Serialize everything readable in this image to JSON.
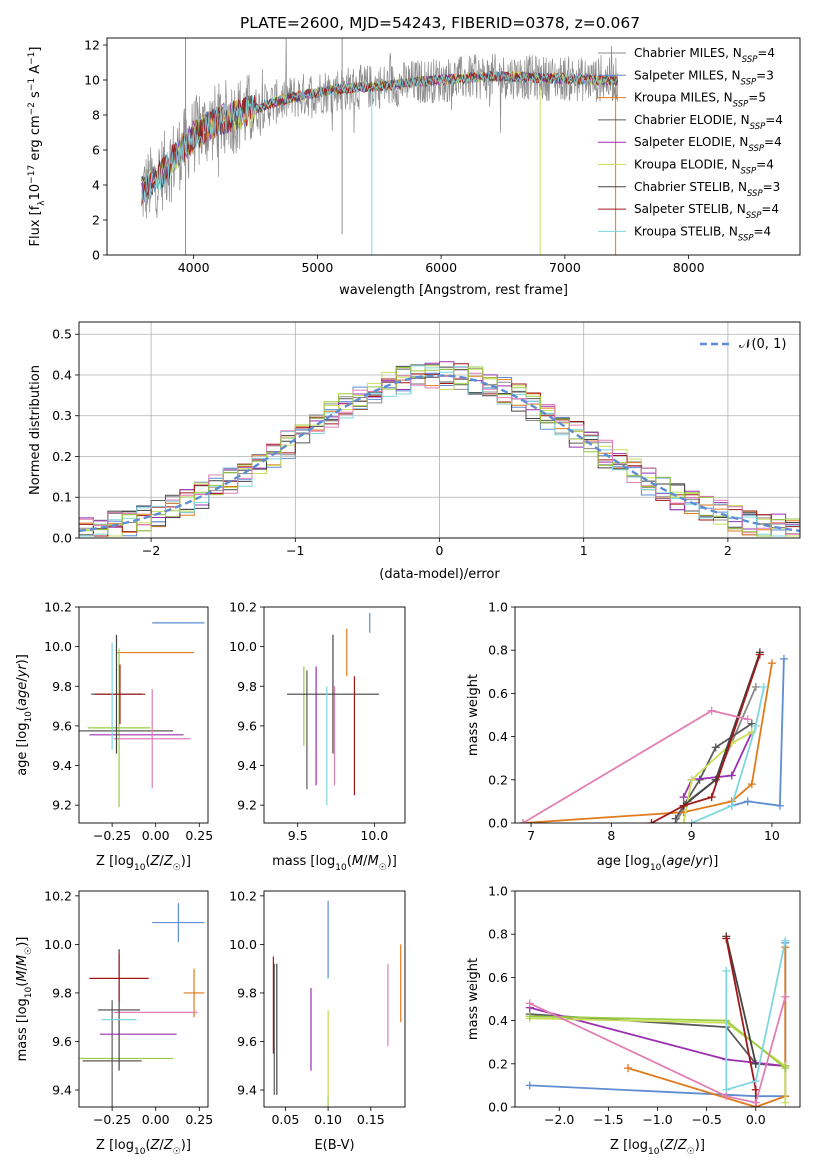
{
  "title": "PLATE=2600, MJD=54243, FIBERID=0378, z=0.067",
  "colors": {
    "Chabrier MILES": "#8c8c8c",
    "Salpeter MILES": "#5f8dd3",
    "Kroupa MILES": "#e07b1c",
    "Chabrier ELODIE": "#5a5a5a",
    "Salpeter ELODIE": "#9b30b0",
    "Kroupa ELODIE": "#c8e05a",
    "Chabrier STELIB": "#444444",
    "Salpeter STELIB": "#a01818",
    "Kroupa STELIB": "#7fd6e0",
    "pink": "#e27fb4",
    "olive": "#9acb40"
  },
  "legend1": [
    {
      "pre": "Chabrier MILES, N",
      "sub": "SSP",
      "post": "=4",
      "color": "#8c8c8c"
    },
    {
      "pre": "Salpeter MILES, N",
      "sub": "SSP",
      "post": "=3",
      "color": "#5f8dd3"
    },
    {
      "pre": "Kroupa MILES, N",
      "sub": "SSP",
      "post": "=5",
      "color": "#e07b1c"
    },
    {
      "pre": "Chabrier ELODIE, N",
      "sub": "SSP",
      "post": "=4",
      "color": "#5a5a5a"
    },
    {
      "pre": "Salpeter ELODIE, N",
      "sub": "SSP",
      "post": "=4",
      "color": "#9b30b0"
    },
    {
      "pre": "Kroupa ELODIE, N",
      "sub": "SSP",
      "post": "=4",
      "color": "#c8e05a"
    },
    {
      "pre": "Chabrier STELIB, N",
      "sub": "SSP",
      "post": "=3",
      "color": "#444444"
    },
    {
      "pre": "Salpeter STELIB, N",
      "sub": "SSP",
      "post": "=4",
      "color": "#a01818"
    },
    {
      "pre": "Kroupa STELIB, N",
      "sub": "SSP",
      "post": "=4",
      "color": "#7fd6e0"
    }
  ],
  "legend2": {
    "label": "𝒩(0,1)",
    "color": "#5f8dd3"
  },
  "chart_data": [
    {
      "id": "spectrum",
      "type": "line",
      "xlabel": "wavelength [Angstrom, rest frame]",
      "ylabel": "Flux [f_λ 10^-17 erg cm^-2 s^-1 A^-1]",
      "xlim": [
        3300,
        8900
      ],
      "ylim": [
        0,
        12.4
      ],
      "xticks": [
        4000,
        5000,
        6000,
        7000,
        8000
      ],
      "yticks": [
        0,
        2,
        4,
        6,
        8,
        10,
        12
      ],
      "grid": false,
      "series_shape": {
        "x": [
          3580,
          3700,
          3800,
          3900,
          4000,
          4100,
          4250,
          4400,
          4600,
          4800,
          5000,
          5200,
          5400,
          5600,
          5800,
          6000,
          6200,
          6400,
          6600,
          6800,
          7000,
          7200,
          7420
        ],
        "y": [
          3.6,
          4.3,
          5.2,
          6.0,
          6.8,
          7.3,
          7.8,
          8.1,
          8.6,
          9.0,
          9.3,
          9.5,
          9.6,
          9.7,
          9.9,
          10.0,
          10.1,
          10.2,
          10.2,
          10.1,
          10.1,
          10.0,
          10.0
        ]
      }
    },
    {
      "id": "residuals",
      "type": "histogram",
      "xlabel": "(data-model)/error",
      "ylabel": "Normed distribution",
      "xlim": [
        -2.5,
        2.5
      ],
      "ylim": [
        0,
        0.53
      ],
      "xticks": [
        -2,
        -1,
        0,
        1,
        2
      ],
      "yticks": [
        0.0,
        0.1,
        0.2,
        0.3,
        0.4,
        0.5
      ],
      "grid": true,
      "bin_width": 0.1,
      "reference": "N(0,1) dashed"
    },
    {
      "id": "age_vs_Z",
      "type": "errorbar",
      "xlabel": "Z [log10(Z/Z☉)]",
      "ylabel": "age  [log10(age/yr)]",
      "xlim": [
        -0.44,
        0.3
      ],
      "ylim": [
        9.11,
        10.2
      ],
      "xticks": [
        -0.25,
        0.0,
        0.25
      ],
      "yticks": [
        9.2,
        9.4,
        9.6,
        9.8,
        10.0,
        10.2
      ],
      "points": [
        {
          "x": 0.13,
          "xerr": 0.15,
          "y": 10.12,
          "yerr": 0.0,
          "color": "#5f8dd3"
        },
        {
          "x": 0.0,
          "xerr": 0.22,
          "y": 9.97,
          "yerr": 0.0,
          "color": "#e07b1c"
        },
        {
          "x": -0.21,
          "xerr": 0.18,
          "y": 9.59,
          "yerr": 0.4,
          "color": "#9acb40"
        },
        {
          "x": -0.17,
          "xerr": 0.27,
          "y": 9.575,
          "yerr": 0.0,
          "color": "#5a5a5a"
        },
        {
          "x": -0.11,
          "xerr": 0.27,
          "y": 9.555,
          "yerr": 0.0,
          "color": "#9b30b0"
        },
        {
          "x": -0.02,
          "xerr": 0.22,
          "y": 9.535,
          "yerr": 0.25,
          "color": "#e27fb4"
        },
        {
          "x": -0.225,
          "xerr": 0.145,
          "y": 9.76,
          "yerr": 0.3,
          "color": "#444444"
        },
        {
          "x": -0.205,
          "xerr": 0.145,
          "y": 9.76,
          "yerr": 0.15,
          "color": "#a01818"
        },
        {
          "x": -0.25,
          "xerr": 0.0,
          "y": 9.75,
          "yerr": 0.27,
          "color": "#7fd6e0"
        }
      ]
    },
    {
      "id": "age_vs_mass",
      "type": "errorbar",
      "xlabel": "mass [log10(M/M☉)]",
      "ylabel": "",
      "xlim": [
        9.28,
        10.2
      ],
      "ylim": [
        9.11,
        10.2
      ],
      "xticks": [
        9.5,
        10.0
      ],
      "yticks": [
        9.2,
        9.4,
        9.6,
        9.8,
        10.0,
        10.2
      ],
      "points": [
        {
          "x": 9.97,
          "xerr": 0.0,
          "y": 10.12,
          "yerr": 0.05,
          "color": "#5f8dd3"
        },
        {
          "x": 9.82,
          "xerr": 0.0,
          "y": 9.97,
          "yerr": 0.12,
          "color": "#e07b1c"
        },
        {
          "x": 9.54,
          "xerr": 0.0,
          "y": 9.7,
          "yerr": 0.2,
          "color": "#9acb40"
        },
        {
          "x": 9.56,
          "xerr": 0.0,
          "y": 9.58,
          "yerr": 0.3,
          "color": "#5a5a5a"
        },
        {
          "x": 9.62,
          "xerr": 0.0,
          "y": 9.6,
          "yerr": 0.3,
          "color": "#9b30b0"
        },
        {
          "x": 9.74,
          "xerr": 0.0,
          "y": 9.55,
          "yerr": 0.25,
          "color": "#e27fb4"
        },
        {
          "x": 9.73,
          "xerr": 0.3,
          "y": 9.76,
          "yerr": 0.3,
          "color": "#444444"
        },
        {
          "x": 9.87,
          "xerr": 0.0,
          "y": 9.55,
          "yerr": 0.3,
          "color": "#a01818"
        },
        {
          "x": 9.69,
          "xerr": 0.0,
          "y": 9.5,
          "yerr": 0.3,
          "color": "#7fd6e0"
        }
      ]
    },
    {
      "id": "weight_vs_age",
      "type": "line",
      "xlabel": "age  [log10(age/yr)]",
      "ylabel": "mass weight",
      "xlim": [
        6.8,
        10.35
      ],
      "ylim": [
        0,
        1
      ],
      "xticks": [
        7,
        8,
        9,
        10
      ],
      "yticks": [
        0.0,
        0.2,
        0.4,
        0.6,
        0.8,
        1.0
      ],
      "series": [
        {
          "name": "Chabrier MILES",
          "color": "#8c8c8c",
          "x": [
            8.8,
            8.95,
            9.3,
            9.8
          ],
          "y": [
            0.0,
            0.1,
            0.2,
            0.63
          ]
        },
        {
          "name": "Salpeter MILES",
          "color": "#5f8dd3",
          "x": [
            9.5,
            9.7,
            10.1,
            10.15
          ],
          "y": [
            0.08,
            0.1,
            0.08,
            0.76
          ]
        },
        {
          "name": "Kroupa MILES",
          "color": "#e07b1c",
          "x": [
            6.9,
            8.9,
            9.5,
            9.75,
            10.0
          ],
          "y": [
            0.0,
            0.05,
            0.1,
            0.18,
            0.74
          ]
        },
        {
          "name": "Chabrier ELODIE",
          "color": "#5a5a5a",
          "x": [
            8.8,
            9.1,
            9.3,
            9.75
          ],
          "y": [
            0.02,
            0.2,
            0.35,
            0.46
          ]
        },
        {
          "name": "Salpeter ELODIE",
          "color": "#9b30b0",
          "x": [
            8.9,
            9.0,
            9.5,
            9.75
          ],
          "y": [
            0.12,
            0.2,
            0.22,
            0.42
          ]
        },
        {
          "name": "Kroupa ELODIE",
          "color": "#c8e05a",
          "x": [
            8.9,
            9.0,
            9.5,
            9.75
          ],
          "y": [
            0.0,
            0.2,
            0.37,
            0.42
          ]
        },
        {
          "name": "Chabrier STELIB",
          "color": "#444444",
          "x": [
            8.9,
            9.3,
            9.85
          ],
          "y": [
            0.08,
            0.2,
            0.79
          ]
        },
        {
          "name": "Salpeter STELIB",
          "color": "#a01818",
          "x": [
            8.5,
            8.9,
            9.25,
            9.85
          ],
          "y": [
            0.0,
            0.08,
            0.12,
            0.78
          ]
        },
        {
          "name": "Kroupa STELIB",
          "color": "#7fd6e0",
          "x": [
            9.0,
            9.5,
            9.8,
            9.9
          ],
          "y": [
            0.0,
            0.08,
            0.45,
            0.63
          ]
        },
        {
          "name": "pink",
          "color": "#e27fb4",
          "x": [
            6.9,
            9.25,
            9.7
          ],
          "y": [
            0.0,
            0.52,
            0.48
          ]
        }
      ]
    },
    {
      "id": "mass_vs_Z",
      "type": "errorbar",
      "xlabel": "Z [log10(Z/Z☉)]",
      "ylabel": "mass [log10(M/M☉)]",
      "xlim": [
        -0.44,
        0.3
      ],
      "ylim": [
        9.33,
        10.22
      ],
      "xticks": [
        -0.25,
        0.0,
        0.25
      ],
      "yticks": [
        9.4,
        9.6,
        9.8,
        10.0,
        10.2
      ],
      "points": [
        {
          "x": 0.13,
          "xerr": 0.15,
          "y": 10.09,
          "yerr": 0.08,
          "color": "#5f8dd3"
        },
        {
          "x": 0.22,
          "xerr": 0.06,
          "y": 9.8,
          "yerr": 0.1,
          "color": "#e07b1c"
        },
        {
          "x": -0.17,
          "xerr": 0.27,
          "y": 9.53,
          "yerr": 0.0,
          "color": "#9acb40"
        },
        {
          "x": -0.25,
          "xerr": 0.17,
          "y": 9.52,
          "yerr": 0.25,
          "color": "#5a5a5a"
        },
        {
          "x": -0.1,
          "xerr": 0.22,
          "y": 9.63,
          "yerr": 0.0,
          "color": "#9b30b0"
        },
        {
          "x": 0.0,
          "xerr": 0.24,
          "y": 9.72,
          "yerr": 0.0,
          "color": "#e27fb4"
        },
        {
          "x": -0.21,
          "xerr": 0.12,
          "y": 9.73,
          "yerr": 0.25,
          "color": "#444444"
        },
        {
          "x": -0.21,
          "xerr": 0.17,
          "y": 9.86,
          "yerr": 0.1,
          "color": "#a01818"
        },
        {
          "x": -0.21,
          "xerr": 0.1,
          "y": 9.69,
          "yerr": 0.0,
          "color": "#7fd6e0"
        }
      ]
    },
    {
      "id": "mass_vs_ebv",
      "type": "errorbar",
      "xlabel": "E(B-V)",
      "ylabel": "",
      "xlim": [
        0.025,
        0.19
      ],
      "ylim": [
        9.33,
        10.22
      ],
      "xticks": [
        0.05,
        0.1,
        0.15
      ],
      "yticks": [
        9.4,
        9.6,
        9.8,
        10.0,
        10.2
      ],
      "points": [
        {
          "x": 0.1,
          "xerr": 0.0,
          "y": 10.02,
          "yerr": 0.16,
          "color": "#5f8dd3"
        },
        {
          "x": 0.185,
          "xerr": 0.0,
          "y": 9.84,
          "yerr": 0.16,
          "color": "#e07b1c"
        },
        {
          "x": 0.1,
          "xerr": 0.0,
          "y": 9.52,
          "yerr": 0.2,
          "color": "#9acb40"
        },
        {
          "x": 0.037,
          "xerr": 0.0,
          "y": 9.65,
          "yerr": 0.27,
          "color": "#5a5a5a"
        },
        {
          "x": 0.08,
          "xerr": 0.0,
          "y": 9.65,
          "yerr": 0.17,
          "color": "#9b30b0"
        },
        {
          "x": 0.17,
          "xerr": 0.0,
          "y": 9.75,
          "yerr": 0.17,
          "color": "#e27fb4"
        },
        {
          "x": 0.04,
          "xerr": 0.0,
          "y": 9.65,
          "yerr": 0.27,
          "color": "#444444"
        },
        {
          "x": 0.036,
          "xerr": 0.0,
          "y": 9.75,
          "yerr": 0.2,
          "color": "#a01818"
        },
        {
          "x": 0.1,
          "xerr": 0.0,
          "y": 9.55,
          "yerr": 0.18,
          "color": "#c8e05a"
        }
      ]
    },
    {
      "id": "weight_vs_Z",
      "type": "line",
      "xlabel": "Z [log10(Z/Z☉)]",
      "ylabel": "mass weight",
      "xlim": [
        -2.45,
        0.45
      ],
      "ylim": [
        0,
        1
      ],
      "xticks": [
        -2.0,
        -1.5,
        -1.0,
        -0.5,
        0.0
      ],
      "yticks": [
        0.0,
        0.2,
        0.4,
        0.6,
        0.8,
        1.0
      ],
      "series": [
        {
          "name": "Salpeter MILES",
          "color": "#5f8dd3",
          "x": [
            -2.3,
            0.0,
            0.3,
            0.3
          ],
          "y": [
            0.1,
            0.05,
            0.05,
            0.76
          ]
        },
        {
          "name": "Kroupa MILES",
          "color": "#e07b1c",
          "x": [
            -1.3,
            0.0,
            0.3,
            0.3
          ],
          "y": [
            0.18,
            0.0,
            0.05,
            0.74
          ]
        },
        {
          "name": "Chabrier ELODIE",
          "color": "#5a5a5a",
          "x": [
            -2.3,
            -0.3,
            0.0,
            0.3
          ],
          "y": [
            0.43,
            0.37,
            0.2,
            0.19
          ]
        },
        {
          "name": "Salpeter ELODIE",
          "color": "#9b30b0",
          "x": [
            -2.3,
            -0.3,
            0.3
          ],
          "y": [
            0.46,
            0.22,
            0.19
          ]
        },
        {
          "name": "Kroupa ELODIE",
          "color": "#c8e05a",
          "x": [
            -2.3,
            -0.3,
            0.3,
            0.3
          ],
          "y": [
            0.41,
            0.39,
            0.19,
            0.02
          ]
        },
        {
          "name": "olive",
          "color": "#9acb40",
          "x": [
            -2.3,
            -0.3,
            0.3
          ],
          "y": [
            0.42,
            0.4,
            0.18
          ]
        },
        {
          "name": "Chabrier STELIB",
          "color": "#444444",
          "x": [
            -0.3,
            0.0
          ],
          "y": [
            0.79,
            0.2
          ]
        },
        {
          "name": "Salpeter STELIB",
          "color": "#a01818",
          "x": [
            -0.3,
            0.0,
            0.0
          ],
          "y": [
            0.78,
            0.08,
            0.0
          ]
        },
        {
          "name": "Kroupa STELIB",
          "color": "#7fd6e0",
          "x": [
            -0.3,
            -0.3,
            0.0,
            0.3
          ],
          "y": [
            0.63,
            0.08,
            0.12,
            0.77
          ]
        },
        {
          "name": "pink",
          "color": "#e27fb4",
          "x": [
            -2.3,
            -0.3,
            0.0,
            0.3
          ],
          "y": [
            0.48,
            0.05,
            0.02,
            0.51
          ]
        }
      ]
    }
  ]
}
